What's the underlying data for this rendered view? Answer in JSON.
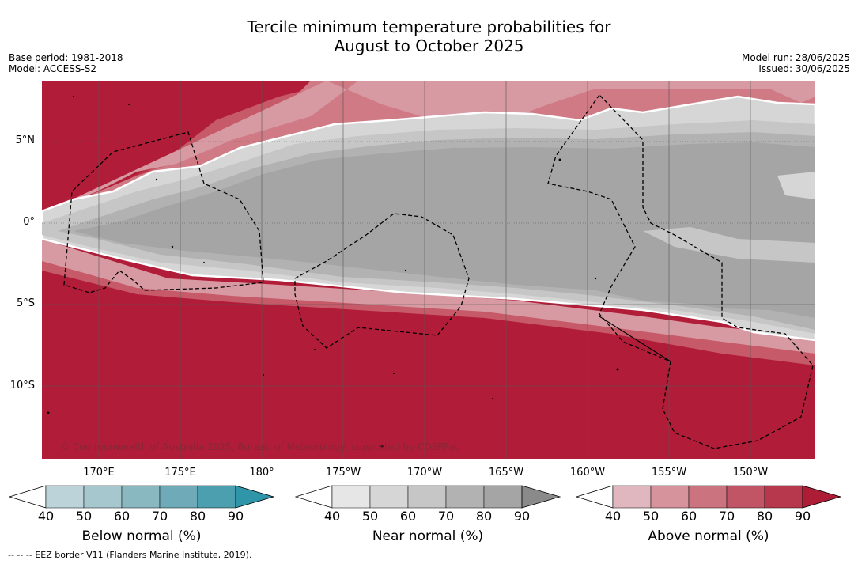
{
  "title": {
    "line1": "Tercile minimum temperature probabilities for",
    "line2": "August to October 2025"
  },
  "meta_left": {
    "base_period": "Base period: 1981-2018",
    "model": "Model: ACCESS-S2"
  },
  "meta_right": {
    "model_run": "Model run: 28/06/2025",
    "issued": "Issued: 30/06/2025"
  },
  "map": {
    "lat_labels": [
      "5°N",
      "0°",
      "5°S",
      "10°S"
    ],
    "lon_labels": [
      "170°E",
      "175°E",
      "180°",
      "175°W",
      "170°W",
      "165°W",
      "160°W",
      "155°W",
      "150°W"
    ],
    "copyright": "© Commonwealth of Australia 2025, Bureau of Meteorology, supported by COSPPac",
    "colors": {
      "above_90": "#b11d39",
      "above_80": "#bb3549",
      "above_70": "#c65a68",
      "above_60": "#cf7a85",
      "above_50": "#d89aa2",
      "near_50": "#d6d6d6",
      "near_60": "#c6c6c6",
      "near_70": "#b2b2b2",
      "near_80": "#a5a5a5"
    }
  },
  "colorbars": [
    {
      "label": "Below normal (%)",
      "ticks": [
        "40",
        "50",
        "60",
        "70",
        "80",
        "90"
      ],
      "colors": [
        "#bcd3da",
        "#a6c7cd",
        "#8ab8c1",
        "#6eaab7",
        "#4c9fae",
        "#2f95a8"
      ]
    },
    {
      "label": "Near normal (%)",
      "ticks": [
        "40",
        "50",
        "60",
        "70",
        "80",
        "90"
      ],
      "colors": [
        "#e6e6e6",
        "#d6d6d6",
        "#c6c6c6",
        "#b2b2b2",
        "#a5a5a5",
        "#8a8a8a"
      ]
    },
    {
      "label": "Above normal (%)",
      "ticks": [
        "40",
        "50",
        "60",
        "70",
        "80",
        "90"
      ],
      "colors": [
        "#e0b7be",
        "#d6939c",
        "#cc7380",
        "#c15566",
        "#b7374c",
        "#ae1d36"
      ]
    }
  ],
  "footnote": "--  --  -- EEZ border V11 (Flanders Marine Institute, 2019)."
}
